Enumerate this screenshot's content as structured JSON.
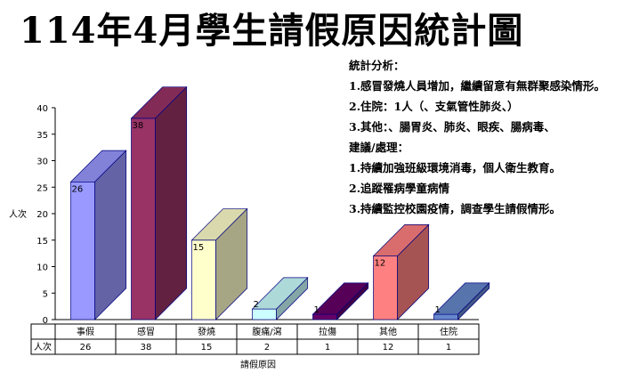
{
  "title": "114年4月學生請假原因統計圖",
  "analysis": {
    "lines": [
      "統計分析：",
      "1.感冒發燒人員增加，繼續留意有無群聚感染情形。",
      "2.住院：1人（、支氣管性肺炎、）",
      "3.其他：、腸胃炎、肺炎、眼疾、腸病毒、",
      "建議/處理：",
      "1.持續加強班級環境消毒，個人衛生教育。",
      "2.追蹤罹病學童病情",
      "3.持續監控校園疫情，調查學生請假情形。"
    ]
  },
  "chart_data": {
    "type": "bar",
    "categories": [
      "事假",
      "感冒",
      "發燒",
      "腹痛/瀉",
      "拉傷",
      "其他",
      "住院"
    ],
    "series": [
      {
        "name": "人次",
        "values": [
          26,
          38,
          15,
          2,
          1,
          12,
          1
        ]
      }
    ],
    "ylabel": "人次",
    "xlabel": "請假原因",
    "ylim": [
      0,
      40
    ],
    "yticks": [
      0,
      5,
      10,
      15,
      20,
      25,
      30,
      35,
      40
    ],
    "bar_colors": [
      "#9999ff",
      "#993366",
      "#ffffcc",
      "#ccffff",
      "#660066",
      "#ff8080",
      "#6688cc"
    ],
    "table_row_label": "人次",
    "grid": false,
    "style": "3d"
  }
}
